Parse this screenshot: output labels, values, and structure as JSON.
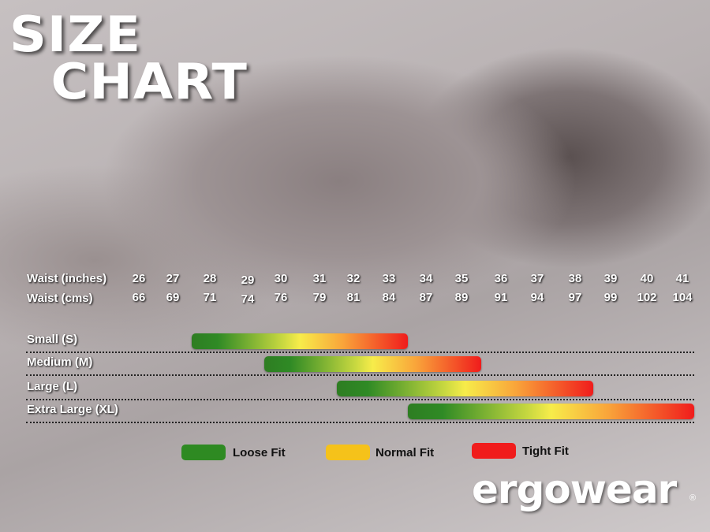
{
  "title": {
    "line1": "SIZE",
    "line2": "CHART"
  },
  "chart_data": {
    "type": "bar",
    "title": "SIZE CHART",
    "row_labels": {
      "inches": "Waist (inches)",
      "cms": "Waist (cms)"
    },
    "waist_inches": [
      26,
      27,
      28,
      29,
      30,
      31,
      32,
      33,
      34,
      35,
      36,
      37,
      38,
      39,
      40,
      41
    ],
    "waist_cms": [
      66,
      69,
      71,
      74,
      76,
      79,
      81,
      84,
      87,
      89,
      91,
      94,
      97,
      99,
      102,
      104
    ],
    "sizes": [
      {
        "name": "Small (S)",
        "start_in": 27.5,
        "end_in": 33.5
      },
      {
        "name": "Medium (M)",
        "start_in": 29.5,
        "end_in": 35.5
      },
      {
        "name": "Large (L)",
        "start_in": 31.5,
        "end_in": 38.5
      },
      {
        "name": "Extra Large (XL)",
        "start_in": 33.5,
        "end_in": 41.5
      }
    ],
    "legend": [
      {
        "label": "Loose Fit",
        "color": "#2e8a22"
      },
      {
        "label": "Normal Fit",
        "color": "#f5c21a"
      },
      {
        "label": "Tight Fit",
        "color": "#f01c1c"
      }
    ]
  },
  "brand": {
    "logo": "ergowear",
    "mark": "®"
  }
}
